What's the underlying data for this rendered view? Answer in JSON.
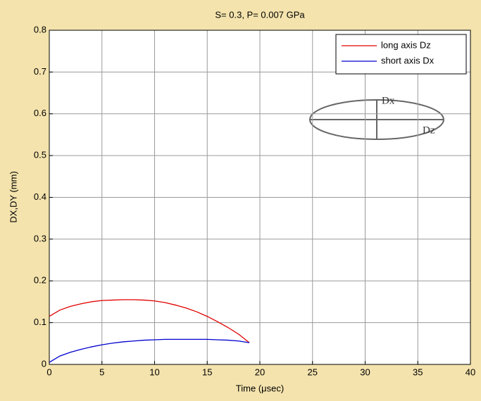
{
  "chart_data": {
    "type": "line",
    "title": "S= 0.3,  P= 0.007 GPa",
    "x_label": "Time (μsec)",
    "y_label": "DX,DY (mm)",
    "x": [
      0,
      1,
      2,
      3,
      4,
      5,
      6,
      7,
      8,
      9,
      10,
      11,
      12,
      13,
      14,
      15,
      16,
      17,
      18,
      19
    ],
    "series": [
      {
        "name": "long axis Dz",
        "color": "#e00000",
        "values": [
          0.115,
          0.13,
          0.139,
          0.145,
          0.15,
          0.153,
          0.154,
          0.155,
          0.155,
          0.154,
          0.152,
          0.148,
          0.142,
          0.135,
          0.126,
          0.115,
          0.102,
          0.088,
          0.072,
          0.052
        ]
      },
      {
        "name": "short axis Dx",
        "color": "#0000d0",
        "values": [
          0.005,
          0.02,
          0.029,
          0.036,
          0.042,
          0.047,
          0.051,
          0.054,
          0.056,
          0.058,
          0.059,
          0.06,
          0.06,
          0.06,
          0.06,
          0.06,
          0.059,
          0.058,
          0.056,
          0.052
        ]
      }
    ],
    "xlim": [
      0,
      40
    ],
    "xticks": [
      0,
      5,
      10,
      15,
      20,
      25,
      30,
      35,
      40
    ],
    "ylim": [
      0,
      0.8
    ],
    "yticks": [
      0,
      0.1,
      0.2,
      0.3,
      0.4,
      0.5,
      0.6,
      0.7,
      0.8
    ],
    "grid": true,
    "legend": "upper right",
    "annotations": [
      "Dx",
      "Dz"
    ]
  }
}
